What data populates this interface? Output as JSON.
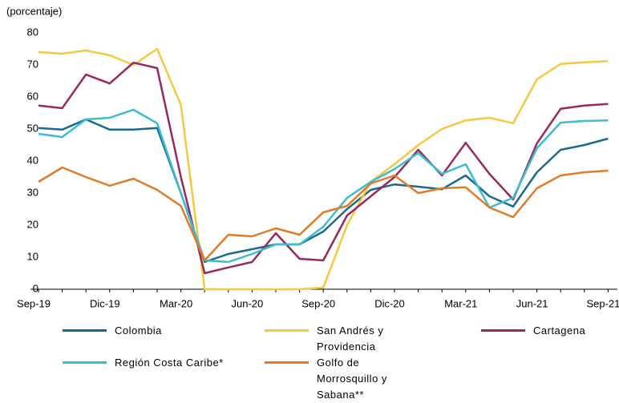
{
  "chart_data": {
    "type": "line",
    "y_label": "(porcentaje)",
    "categories": [
      "Sep-19",
      null,
      null,
      "Dic-19",
      null,
      null,
      "Mar-20",
      null,
      null,
      "Jun-20",
      null,
      null,
      "Sep-20",
      null,
      null,
      "Dic-20",
      null,
      null,
      "Mar-21",
      null,
      null,
      "Jun-21",
      null,
      null,
      "Sep-21"
    ],
    "ylim": [
      0,
      80
    ],
    "yticks": [
      0,
      10,
      20,
      30,
      40,
      50,
      60,
      70,
      80
    ],
    "grid": false,
    "series": [
      {
        "name": "Colombia",
        "color": "#1b6a8c",
        "values": [
          50.3,
          49.8,
          53,
          49.8,
          49.8,
          50.3,
          30,
          8.5,
          11,
          12.5,
          14,
          14,
          18,
          25,
          31,
          32.7,
          32,
          31.2,
          35.5,
          29,
          25.8,
          36.5,
          43.5,
          45,
          47
        ]
      },
      {
        "name": "San Andrés y Providencia",
        "color": "#f5c842",
        "values": [
          74,
          73.5,
          74.5,
          73,
          70,
          75,
          57.5,
          0,
          0,
          0,
          0,
          0,
          0.5,
          20,
          33.5,
          39,
          45,
          50,
          52.7,
          53.5,
          51.8,
          65.5,
          70.3,
          70.8,
          71.2
        ]
      },
      {
        "name": "Cartagena",
        "color": "#962a5e",
        "values": [
          57.3,
          56.5,
          67,
          64.2,
          70.7,
          69,
          35,
          5,
          6.8,
          8.5,
          17.5,
          9.5,
          9,
          23,
          29,
          35,
          43.5,
          35.5,
          45.7,
          36,
          28,
          45.5,
          56.3,
          57.3,
          57.8
        ]
      },
      {
        "name": "Región Costa Caribe*",
        "color": "#3bbcd0",
        "values": [
          48.5,
          47.5,
          53,
          53.5,
          56,
          51.8,
          30,
          9,
          8.5,
          11,
          14,
          14,
          19.5,
          28.5,
          33.5,
          37.5,
          42.5,
          36,
          39,
          25.5,
          28.5,
          44,
          52,
          52.5,
          52.7
        ]
      },
      {
        "name": "Golfo de Morrosquillo y Sabana**",
        "color": "#e07b2a",
        "values": [
          33.5,
          38,
          35,
          32.3,
          34.5,
          31,
          26,
          9,
          17,
          16.5,
          19,
          17,
          24,
          26,
          33,
          35.5,
          30,
          31.5,
          31.8,
          25.5,
          22.5,
          31.5,
          35.5,
          36.5,
          37
        ]
      }
    ]
  }
}
